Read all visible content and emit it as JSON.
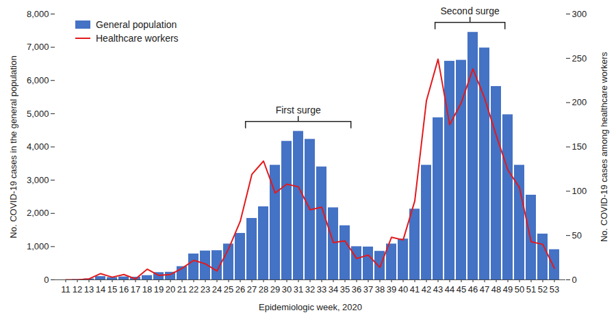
{
  "chart_data": {
    "type": "bar",
    "x_label": "Epidemiologic week, 2020",
    "y_label": "No. COVID-19 cases in the general population",
    "y2_label": "No. COVID-19 cases among healthcare workers",
    "categories": [
      11,
      12,
      13,
      14,
      15,
      16,
      17,
      18,
      19,
      20,
      21,
      22,
      23,
      24,
      25,
      26,
      27,
      28,
      29,
      30,
      31,
      32,
      33,
      34,
      35,
      36,
      37,
      38,
      39,
      40,
      41,
      42,
      43,
      44,
      45,
      46,
      47,
      48,
      49,
      50,
      51,
      52,
      53
    ],
    "series": [
      {
        "name": "General population",
        "type": "bar",
        "color": "#4472c4",
        "values": [
          0,
          10,
          30,
          100,
          70,
          90,
          80,
          130,
          220,
          230,
          400,
          780,
          870,
          880,
          1080,
          1400,
          1850,
          2200,
          3450,
          4170,
          4470,
          4230,
          3400,
          2170,
          1630,
          1000,
          990,
          860,
          1080,
          1230,
          2130,
          3450,
          4880,
          6580,
          6610,
          7450,
          6980,
          5820,
          4970,
          3450,
          2550,
          1380,
          910
        ]
      },
      {
        "name": "Healthcare workers",
        "type": "line",
        "color": "#e3191c",
        "axis": "y2",
        "values": [
          0,
          0,
          1,
          7,
          3,
          6,
          1,
          12,
          5,
          6,
          13,
          22,
          18,
          10,
          35,
          66,
          119,
          134,
          98,
          108,
          105,
          79,
          82,
          42,
          44,
          24,
          28,
          14,
          48,
          45,
          89,
          202,
          249,
          175,
          200,
          238,
          205,
          163,
          124,
          104,
          43,
          40,
          13
        ]
      }
    ],
    "ylim": [
      0,
      8000
    ],
    "yticks": [
      0,
      {
        "value": 1000,
        "label": "1,000"
      },
      {
        "value": 2000,
        "label": "2,000"
      },
      {
        "value": 3000,
        "label": "3,000"
      },
      {
        "value": 4000,
        "label": "4,000"
      },
      {
        "value": 5000,
        "label": "5,000"
      },
      {
        "value": 6000,
        "label": "6,000"
      },
      {
        "value": 7000,
        "label": "7,000"
      },
      {
        "value": 8000,
        "label": "8,000"
      }
    ],
    "y2lim": [
      0,
      300
    ],
    "y2ticks": [
      0,
      50,
      100,
      150,
      200,
      250,
      300
    ],
    "legend": "upper left",
    "annotations": [
      {
        "text": "First surge",
        "x_start": 27,
        "x_end": 35
      },
      {
        "text": "Second surge",
        "x_start": 43,
        "x_end": 48
      }
    ]
  }
}
